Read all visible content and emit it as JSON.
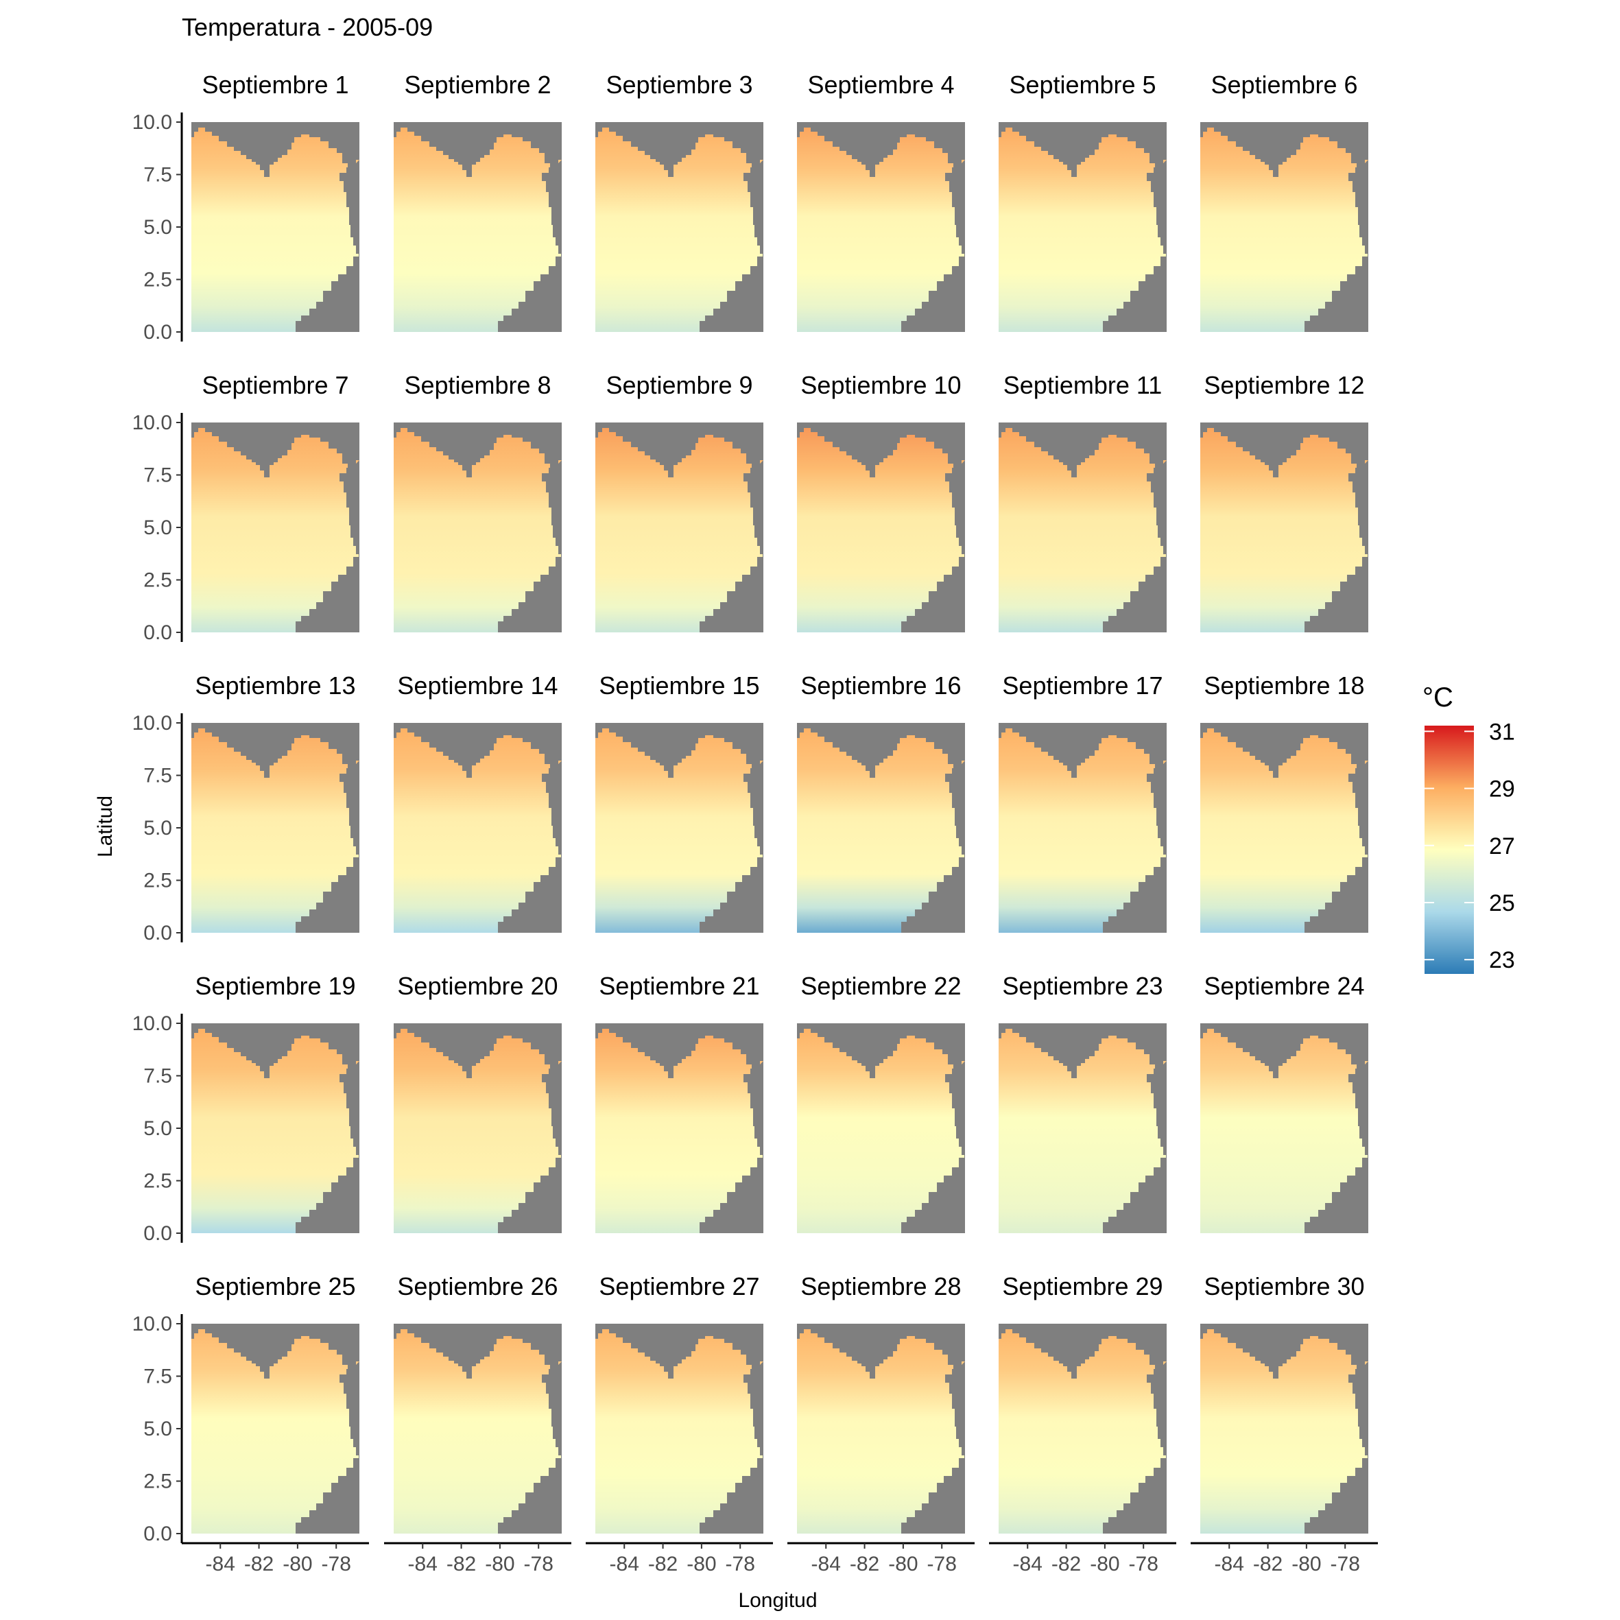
{
  "chart_data": {
    "type": "heatmap",
    "title": "Temperatura - 2005-09",
    "xlabel": "Longitud",
    "ylabel": "Latitud",
    "xlim": [
      -85.5,
      -76.8
    ],
    "ylim": [
      0,
      10
    ],
    "x_ticks": [
      -84,
      -82,
      -80,
      -78
    ],
    "x_tick_labels": [
      "-84",
      "-82",
      "-80",
      "-78"
    ],
    "y_ticks": [
      0,
      2.5,
      5,
      7.5,
      10
    ],
    "y_tick_labels": [
      "0.0",
      "2.5",
      "5.0",
      "7.5",
      "10.0"
    ],
    "facet_rows": 5,
    "facet_cols": 6,
    "facets": [
      {
        "label": "Septiembre 1",
        "coast": 25.3,
        "north": 29.0,
        "mid": 27.0
      },
      {
        "label": "Septiembre 2",
        "coast": 25.5,
        "north": 29.0,
        "mid": 27.0
      },
      {
        "label": "Septiembre 3",
        "coast": 25.6,
        "north": 29.0,
        "mid": 27.1
      },
      {
        "label": "Septiembre 4",
        "coast": 25.5,
        "north": 29.2,
        "mid": 27.1
      },
      {
        "label": "Septiembre 5",
        "coast": 25.5,
        "north": 29.1,
        "mid": 27.1
      },
      {
        "label": "Septiembre 6",
        "coast": 25.4,
        "north": 29.1,
        "mid": 27.1
      },
      {
        "label": "Septiembre 7",
        "coast": 25.4,
        "north": 29.1,
        "mid": 27.4
      },
      {
        "label": "Septiembre 8",
        "coast": 25.5,
        "north": 29.1,
        "mid": 27.4
      },
      {
        "label": "Septiembre 9",
        "coast": 25.5,
        "north": 29.3,
        "mid": 27.4
      },
      {
        "label": "Septiembre 10",
        "coast": 25.2,
        "north": 29.4,
        "mid": 27.4
      },
      {
        "label": "Septiembre 11",
        "coast": 25.2,
        "north": 29.2,
        "mid": 27.4
      },
      {
        "label": "Septiembre 12",
        "coast": 25.2,
        "north": 29.2,
        "mid": 27.4
      },
      {
        "label": "Septiembre 13",
        "coast": 24.9,
        "north": 29.1,
        "mid": 27.3
      },
      {
        "label": "Septiembre 14",
        "coast": 24.8,
        "north": 29.0,
        "mid": 27.3
      },
      {
        "label": "Septiembre 15",
        "coast": 24.0,
        "north": 29.0,
        "mid": 27.2
      },
      {
        "label": "Septiembre 16",
        "coast": 23.6,
        "north": 29.0,
        "mid": 27.2
      },
      {
        "label": "Septiembre 17",
        "coast": 24.0,
        "north": 29.0,
        "mid": 27.2
      },
      {
        "label": "Septiembre 18",
        "coast": 24.5,
        "north": 29.0,
        "mid": 27.2
      },
      {
        "label": "Septiembre 19",
        "coast": 24.8,
        "north": 29.0,
        "mid": 27.4
      },
      {
        "label": "Septiembre 20",
        "coast": 25.4,
        "north": 29.1,
        "mid": 27.4
      },
      {
        "label": "Septiembre 21",
        "coast": 25.8,
        "north": 29.2,
        "mid": 27.1
      },
      {
        "label": "Septiembre 22",
        "coast": 26.0,
        "north": 29.0,
        "mid": 26.9
      },
      {
        "label": "Septiembre 23",
        "coast": 26.0,
        "north": 28.8,
        "mid": 26.8
      },
      {
        "label": "Septiembre 24",
        "coast": 26.0,
        "north": 28.8,
        "mid": 26.8
      },
      {
        "label": "Septiembre 25",
        "coast": 26.1,
        "north": 28.8,
        "mid": 26.9
      },
      {
        "label": "Septiembre 26",
        "coast": 26.1,
        "north": 28.9,
        "mid": 26.9
      },
      {
        "label": "Septiembre 27",
        "coast": 26.0,
        "north": 28.9,
        "mid": 27.0
      },
      {
        "label": "Septiembre 28",
        "coast": 25.9,
        "north": 28.9,
        "mid": 27.0
      },
      {
        "label": "Septiembre 29",
        "coast": 25.7,
        "north": 28.9,
        "mid": 27.0
      },
      {
        "label": "Septiembre 30",
        "coast": 25.4,
        "north": 28.8,
        "mid": 27.0
      }
    ],
    "legend": {
      "title": "°C",
      "position": "right",
      "min": 22.5,
      "max": 31.2,
      "ticks": [
        23,
        25,
        27,
        29,
        31
      ],
      "tick_labels": [
        "23",
        "25",
        "27",
        "29",
        "31"
      ],
      "palette": [
        "#2c7bb6",
        "#abd9e9",
        "#ffffbf",
        "#fdae61",
        "#d7191c"
      ]
    },
    "land_color": "#7f7f7f",
    "grid": false
  }
}
